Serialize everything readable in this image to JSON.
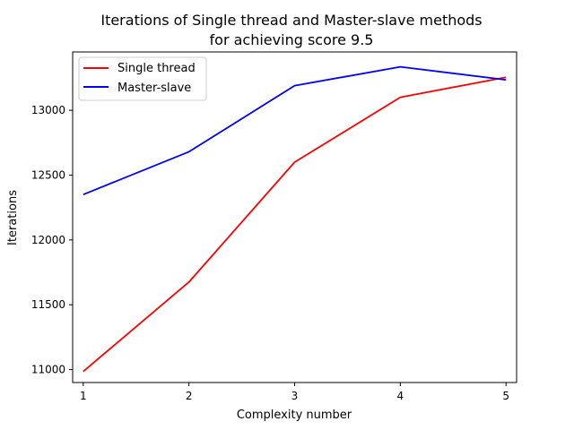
{
  "chart_data": {
    "type": "line",
    "title_line1": "Iterations of Single thread and Master-slave methods",
    "title_line2": "for achieving score 9.5",
    "xlabel": "Complexity number",
    "ylabel": "Iterations",
    "x": [
      1,
      2,
      3,
      4,
      5
    ],
    "xticks": [
      1,
      2,
      3,
      4,
      5
    ],
    "yticks": [
      11000,
      11500,
      12000,
      12500,
      13000
    ],
    "xlim": [
      0.9,
      5.1
    ],
    "ylim": [
      10900,
      13450
    ],
    "grid": false,
    "legend_position": "top-left",
    "series": [
      {
        "name": "Single thread",
        "color": "#ff0000",
        "values": [
          10985,
          11675,
          12600,
          13100,
          13255
        ]
      },
      {
        "name": "Master-slave",
        "color": "#0000ff",
        "values": [
          12350,
          12680,
          13190,
          13335,
          13235
        ]
      }
    ]
  }
}
